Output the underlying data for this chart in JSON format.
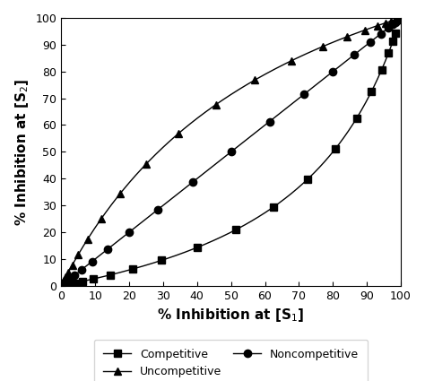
{
  "xlabel": "% Inhibition at [S₁]",
  "ylabel": "% Inhibition at [S₂]",
  "xlim": [
    0,
    100
  ],
  "ylim": [
    0,
    100
  ],
  "xticks": [
    0,
    10,
    20,
    30,
    40,
    50,
    60,
    70,
    80,
    90,
    100
  ],
  "yticks": [
    0,
    10,
    20,
    30,
    40,
    50,
    60,
    70,
    80,
    90,
    100
  ],
  "legend_labels": [
    "Competitive",
    "Uncompetitive",
    "Noncompetitive"
  ],
  "color": "#000000",
  "background_color": "#ffffff",
  "S1_over_Km": 0.5,
  "S2_over_Km": 5.0,
  "alpha_min_log": -2,
  "alpha_max_log": 2,
  "n_curve": 1000,
  "n_markers": 21,
  "marker_size": 6,
  "line_width": 1.0,
  "xlabel_fontsize": 11,
  "ylabel_fontsize": 11,
  "tick_fontsize": 9,
  "legend_fontsize": 9,
  "figsize": [
    4.74,
    4.25
  ],
  "dpi": 100
}
